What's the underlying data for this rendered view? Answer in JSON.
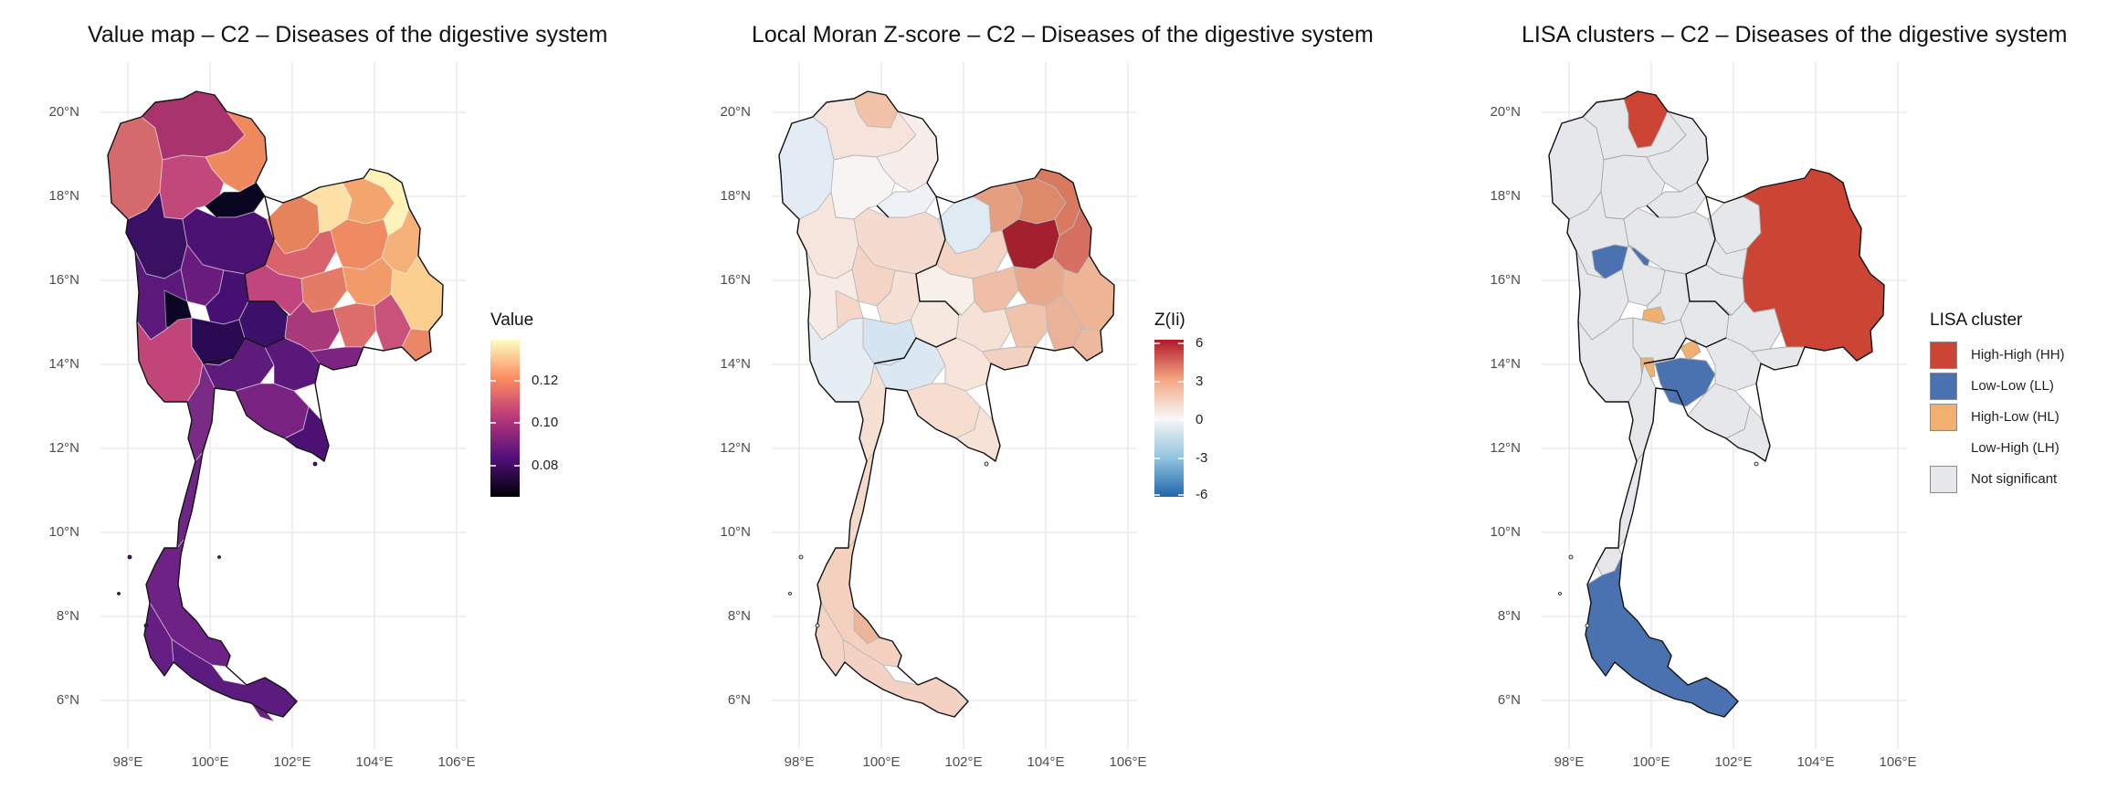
{
  "axes": {
    "lat_labels": [
      "20°N",
      "18°N",
      "16°N",
      "14°N",
      "12°N",
      "10°N",
      "8°N",
      "6°N"
    ],
    "lon_labels": [
      "98°E",
      "100°E",
      "102°E",
      "104°E",
      "106°E"
    ]
  },
  "panels": [
    {
      "title": "Value map – C2 – Diseases of the digestive system",
      "legend": {
        "title": "Value",
        "type": "continuous",
        "ticks": [
          "0.12",
          "0.10",
          "0.08"
        ],
        "colors": [
          "#fcfdbf",
          "#fc8961",
          "#b73779",
          "#51127c",
          "#000004"
        ]
      }
    },
    {
      "title": "Local Moran Z-score – C2 – Diseases of the digestive system",
      "legend": {
        "title": "Z(Ii)",
        "type": "continuous",
        "ticks": [
          "6",
          "3",
          "0",
          "-3",
          "-6"
        ],
        "colors": [
          "#b2182b",
          "#f4a582",
          "#f7f7f7",
          "#92c5de",
          "#2166ac"
        ]
      }
    },
    {
      "title": "LISA clusters – C2 – Diseases of the digestive system",
      "legend": {
        "title": "LISA cluster",
        "type": "categorical",
        "items": [
          {
            "label": "High-High (HH)",
            "color": "#cc4433"
          },
          {
            "label": "Low-Low (LL)",
            "color": "#4a72b0"
          },
          {
            "label": "High-Low (HL)",
            "color": "#f0b070"
          },
          {
            "label": "Low-High (LH)",
            "color": "none"
          },
          {
            "label": "Not significant",
            "color": "#e6e7ea"
          }
        ]
      }
    }
  ]
}
